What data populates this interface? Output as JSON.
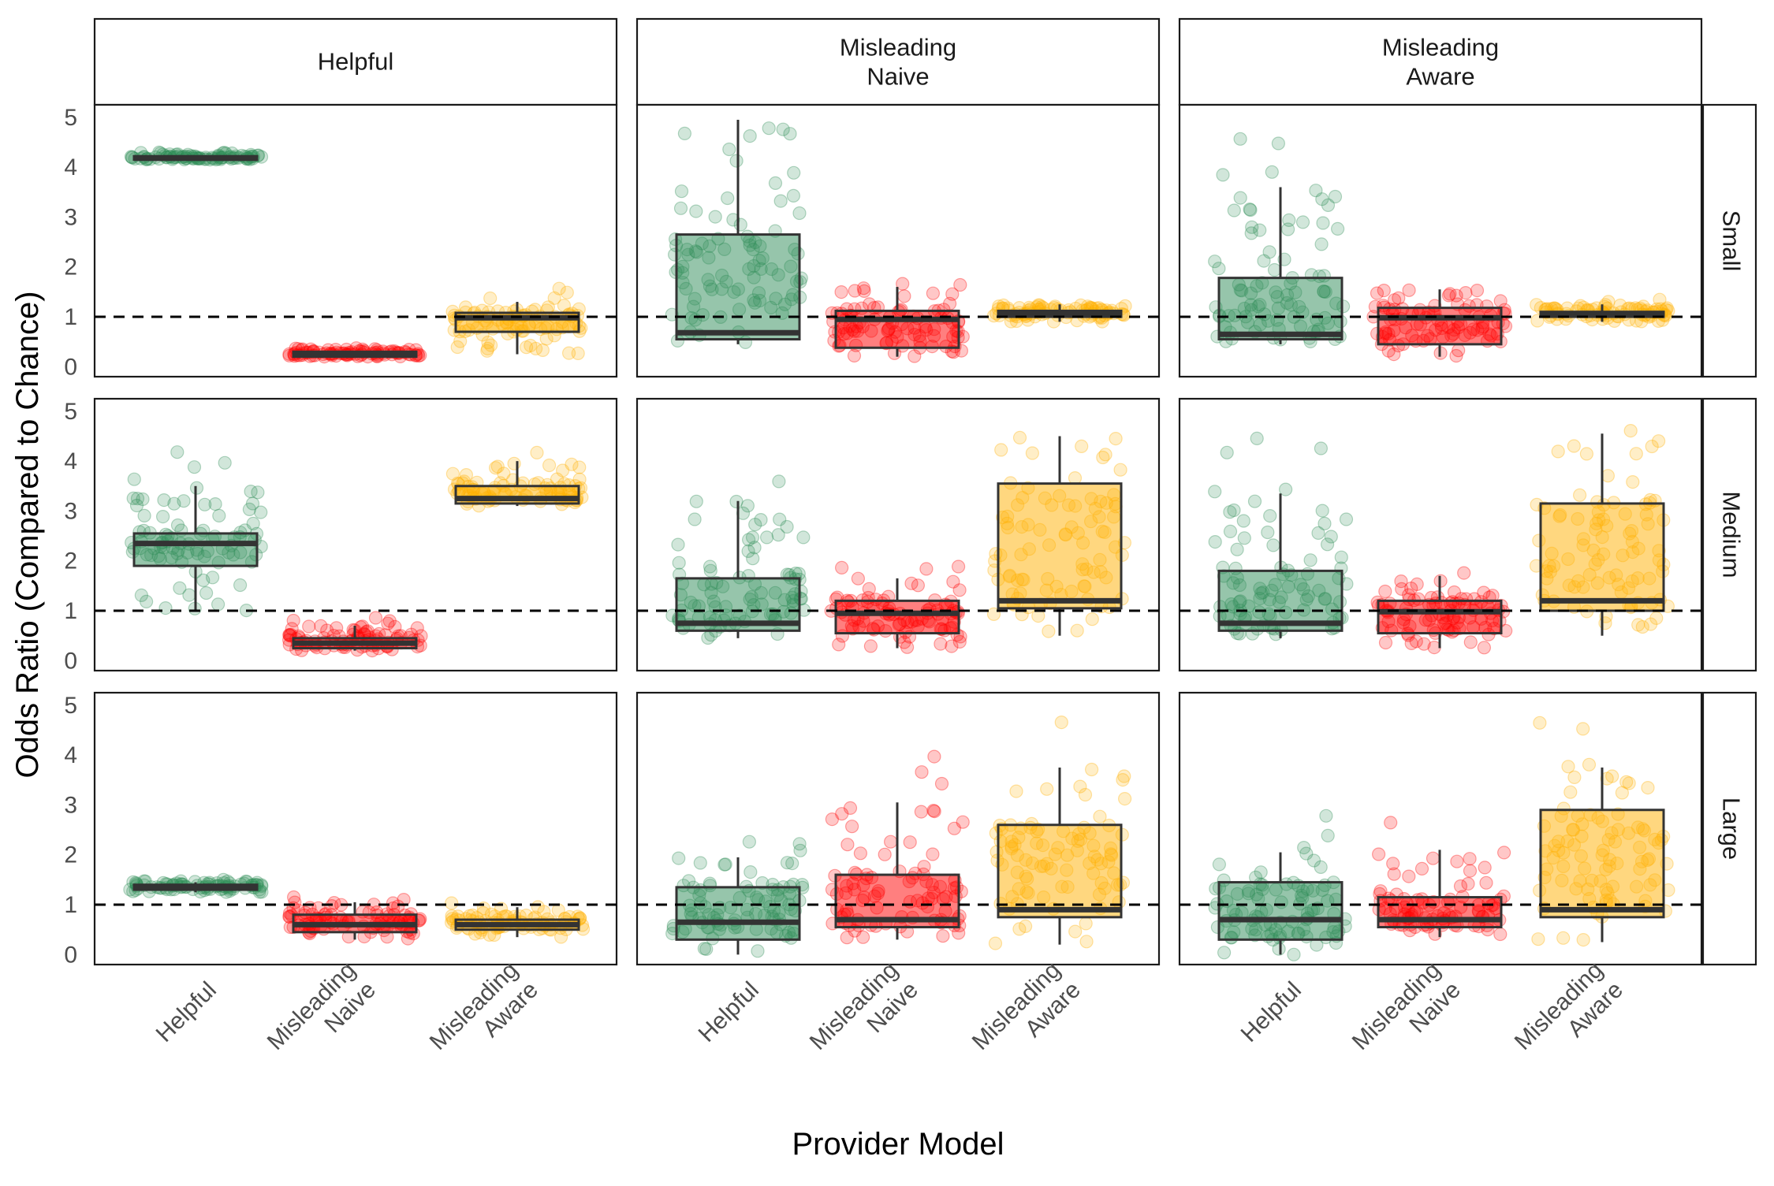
{
  "chart_data": {
    "type": "boxplot",
    "ylabel": "Odds Ratio (Compared to Chance)",
    "xlabel": "Provider Model",
    "ylim": [
      -0.2,
      5.25
    ],
    "yticks": [
      "0",
      "1",
      "2",
      "3",
      "4",
      "5"
    ],
    "reference_line": 1,
    "column_facets": [
      "Helpful",
      "Misleading\nNaive",
      "Misleading\nAware"
    ],
    "row_facets": [
      "Small",
      "Medium",
      "Large"
    ],
    "categories": [
      "Helpful",
      "Misleading\nNaive",
      "Misleading\nAware"
    ],
    "colors": {
      "Helpful": "#2e8b57",
      "Misleading\nNaive": "#ff0000",
      "Misleading\nAware": "#ffb000"
    },
    "panels": [
      {
        "row": "Small",
        "col": "Helpful",
        "boxes": [
          {
            "category": "Helpful",
            "q1": 4.15,
            "median": 4.18,
            "q3": 4.22,
            "whisker_low": 4.15,
            "whisker_high": 4.22
          },
          {
            "category": "Misleading\nNaive",
            "q1": 0.2,
            "median": 0.25,
            "q3": 0.3,
            "whisker_low": 0.2,
            "whisker_high": 0.3
          },
          {
            "category": "Misleading\nAware",
            "q1": 0.7,
            "median": 0.98,
            "q3": 1.08,
            "whisker_low": 0.25,
            "whisker_high": 1.3
          }
        ]
      },
      {
        "row": "Small",
        "col": "Misleading\nNaive",
        "boxes": [
          {
            "category": "Helpful",
            "q1": 0.55,
            "median": 0.68,
            "q3": 2.65,
            "whisker_low": 0.45,
            "whisker_high": 4.95
          },
          {
            "category": "Misleading\nNaive",
            "q1": 0.38,
            "median": 0.95,
            "q3": 1.12,
            "whisker_low": 0.2,
            "whisker_high": 1.6
          },
          {
            "category": "Misleading\nAware",
            "q1": 1.0,
            "median": 1.05,
            "q3": 1.12,
            "whisker_low": 0.9,
            "whisker_high": 1.25
          }
        ]
      },
      {
        "row": "Small",
        "col": "Misleading\nAware",
        "boxes": [
          {
            "category": "Helpful",
            "q1": 0.55,
            "median": 0.65,
            "q3": 1.78,
            "whisker_low": 0.45,
            "whisker_high": 3.6
          },
          {
            "category": "Misleading\nNaive",
            "q1": 0.45,
            "median": 0.98,
            "q3": 1.18,
            "whisker_low": 0.2,
            "whisker_high": 1.55
          },
          {
            "category": "Misleading\nAware",
            "q1": 1.0,
            "median": 1.05,
            "q3": 1.1,
            "whisker_low": 0.9,
            "whisker_high": 1.25
          }
        ]
      },
      {
        "row": "Medium",
        "col": "Helpful",
        "boxes": [
          {
            "category": "Helpful",
            "q1": 1.9,
            "median": 2.35,
            "q3": 2.55,
            "whisker_low": 1.0,
            "whisker_high": 3.5
          },
          {
            "category": "Misleading\nNaive",
            "q1": 0.25,
            "median": 0.35,
            "q3": 0.45,
            "whisker_low": 0.2,
            "whisker_high": 0.7
          },
          {
            "category": "Misleading\nAware",
            "q1": 3.15,
            "median": 3.25,
            "q3": 3.5,
            "whisker_low": 3.1,
            "whisker_high": 4.0
          }
        ]
      },
      {
        "row": "Medium",
        "col": "Misleading\nNaive",
        "boxes": [
          {
            "category": "Helpful",
            "q1": 0.6,
            "median": 0.75,
            "q3": 1.65,
            "whisker_low": 0.45,
            "whisker_high": 3.2
          },
          {
            "category": "Misleading\nNaive",
            "q1": 0.55,
            "median": 0.95,
            "q3": 1.2,
            "whisker_low": 0.25,
            "whisker_high": 1.65
          },
          {
            "category": "Misleading\nAware",
            "q1": 1.05,
            "median": 1.2,
            "q3": 3.55,
            "whisker_low": 0.5,
            "whisker_high": 4.5
          }
        ]
      },
      {
        "row": "Medium",
        "col": "Misleading\nAware",
        "boxes": [
          {
            "category": "Helpful",
            "q1": 0.6,
            "median": 0.75,
            "q3": 1.8,
            "whisker_low": 0.45,
            "whisker_high": 3.35
          },
          {
            "category": "Misleading\nNaive",
            "q1": 0.55,
            "median": 0.98,
            "q3": 1.2,
            "whisker_low": 0.25,
            "whisker_high": 1.7
          },
          {
            "category": "Misleading\nAware",
            "q1": 1.0,
            "median": 1.2,
            "q3": 3.15,
            "whisker_low": 0.5,
            "whisker_high": 4.55
          }
        ]
      },
      {
        "row": "Large",
        "col": "Helpful",
        "boxes": [
          {
            "category": "Helpful",
            "q1": 1.3,
            "median": 1.35,
            "q3": 1.4,
            "whisker_low": 1.25,
            "whisker_high": 1.45
          },
          {
            "category": "Misleading\nNaive",
            "q1": 0.45,
            "median": 0.6,
            "q3": 0.8,
            "whisker_low": 0.3,
            "whisker_high": 1.05
          },
          {
            "category": "Misleading\nAware",
            "q1": 0.5,
            "median": 0.6,
            "q3": 0.7,
            "whisker_low": 0.35,
            "whisker_high": 0.95
          }
        ]
      },
      {
        "row": "Large",
        "col": "Misleading\nNaive",
        "boxes": [
          {
            "category": "Helpful",
            "q1": 0.3,
            "median": 0.65,
            "q3": 1.35,
            "whisker_low": 0.0,
            "whisker_high": 1.95
          },
          {
            "category": "Misleading\nNaive",
            "q1": 0.55,
            "median": 0.7,
            "q3": 1.6,
            "whisker_low": 0.3,
            "whisker_high": 3.05
          },
          {
            "category": "Misleading\nAware",
            "q1": 0.75,
            "median": 0.9,
            "q3": 2.6,
            "whisker_low": 0.2,
            "whisker_high": 3.75
          }
        ]
      },
      {
        "row": "Large",
        "col": "Misleading\nAware",
        "boxes": [
          {
            "category": "Helpful",
            "q1": 0.3,
            "median": 0.7,
            "q3": 1.45,
            "whisker_low": 0.0,
            "whisker_high": 2.05
          },
          {
            "category": "Misleading\nNaive",
            "q1": 0.55,
            "median": 0.7,
            "q3": 1.15,
            "whisker_low": 0.35,
            "whisker_high": 2.1
          },
          {
            "category": "Misleading\nAware",
            "q1": 0.75,
            "median": 0.9,
            "q3": 2.9,
            "whisker_low": 0.25,
            "whisker_high": 3.75
          }
        ]
      }
    ]
  }
}
